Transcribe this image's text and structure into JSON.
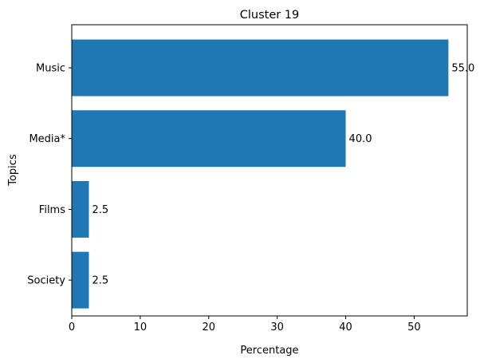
{
  "chart_data": {
    "type": "bar",
    "orientation": "horizontal",
    "title": "Cluster 19",
    "xlabel": "Percentage",
    "ylabel": "Topics",
    "categories": [
      "Music",
      "Media*",
      "Films",
      "Society"
    ],
    "values": [
      55.0,
      40.0,
      2.5,
      2.5
    ],
    "value_labels": [
      "55.0",
      "40.0",
      "2.5",
      "2.5"
    ],
    "xlim": [
      0,
      57.75
    ],
    "xticks": [
      0,
      10,
      20,
      30,
      40,
      50
    ],
    "grid": false,
    "bar_color": "#1f77b4"
  }
}
